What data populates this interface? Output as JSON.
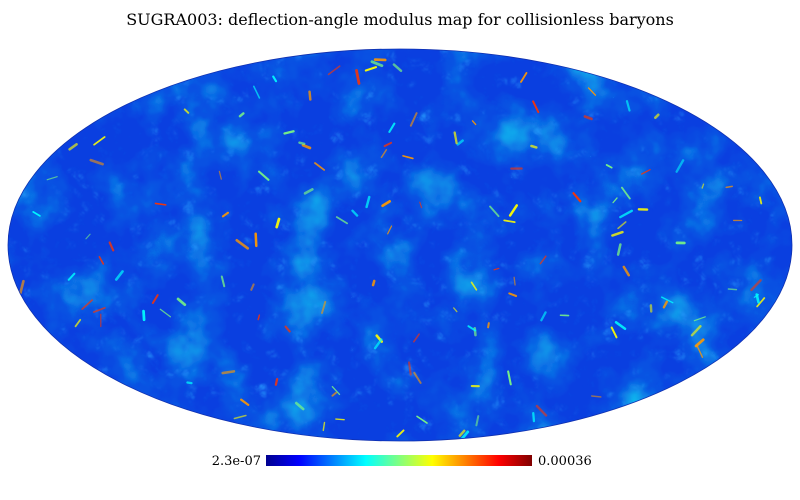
{
  "chart_data": {
    "type": "heatmap",
    "title": "SUGRA003: deflection-angle modulus map for collisionless baryons",
    "projection": "mollweide",
    "colorbar": {
      "min_label": "2.3e-07",
      "max_label": "0.00036",
      "min": 2.3e-07,
      "max": 0.00036,
      "colormap": [
        "#00008f",
        "#0000ff",
        "#0080ff",
        "#00ffff",
        "#80ff80",
        "#ffff00",
        "#ff8000",
        "#ff0000",
        "#800000"
      ]
    },
    "background_color": "#0a3fe0",
    "grid": false
  }
}
